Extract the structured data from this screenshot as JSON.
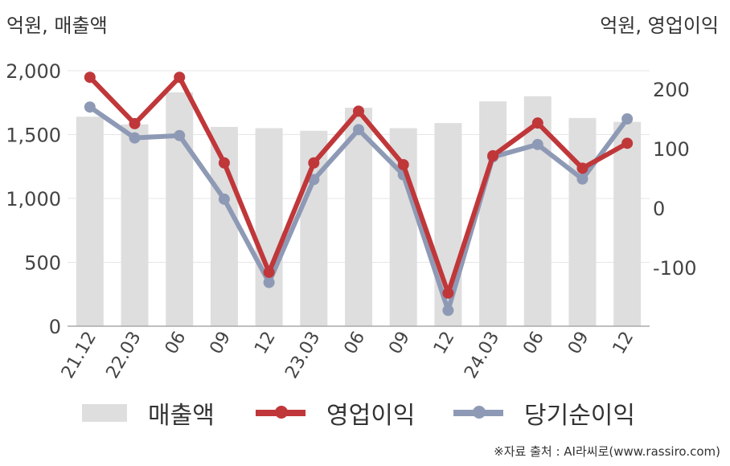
{
  "left_unit": "억원, 매출액",
  "right_unit": "억원, 영업이익",
  "source": "※자료 출처 : AI라씨로(www.rassiro.com)",
  "colors": {
    "revenue": "#dedede",
    "operating_profit": "#c0373a",
    "net_profit": "#8e9ab5"
  },
  "chart_data": {
    "type": "bar",
    "categories": [
      "21.12",
      "22.03",
      "06",
      "09",
      "12",
      "23.03",
      "06",
      "09",
      "12",
      "24.03",
      "06",
      "09",
      "12"
    ],
    "left_axis": {
      "ylim": [
        0,
        2000
      ],
      "ticks": [
        0,
        500,
        1000,
        1500,
        2000
      ],
      "tick_labels": [
        "0",
        "500",
        "1,000",
        "1,500",
        "2,000"
      ]
    },
    "right_axis": {
      "ylim": [
        -200,
        250
      ],
      "ticks": [
        -100,
        0,
        100,
        200
      ],
      "tick_labels": [
        "-100",
        "0",
        "100",
        "200"
      ]
    },
    "series": [
      {
        "name": "매출액",
        "type": "bar",
        "axis": "left",
        "values": [
          1640,
          1580,
          1830,
          1560,
          1550,
          1530,
          1710,
          1550,
          1590,
          1760,
          1800,
          1630,
          1600
        ]
      },
      {
        "name": "영업이익",
        "type": "line",
        "axis": "right",
        "values": [
          220,
          142,
          220,
          76,
          -108,
          76,
          163,
          73,
          -143,
          88,
          143,
          67,
          109
        ]
      },
      {
        "name": "당기순이익",
        "type": "line",
        "axis": "right",
        "values": [
          170,
          118,
          122,
          15,
          -125,
          48,
          132,
          56,
          -172,
          86,
          107,
          49,
          150
        ]
      }
    ],
    "grid": true,
    "legend_position": "bottom"
  }
}
